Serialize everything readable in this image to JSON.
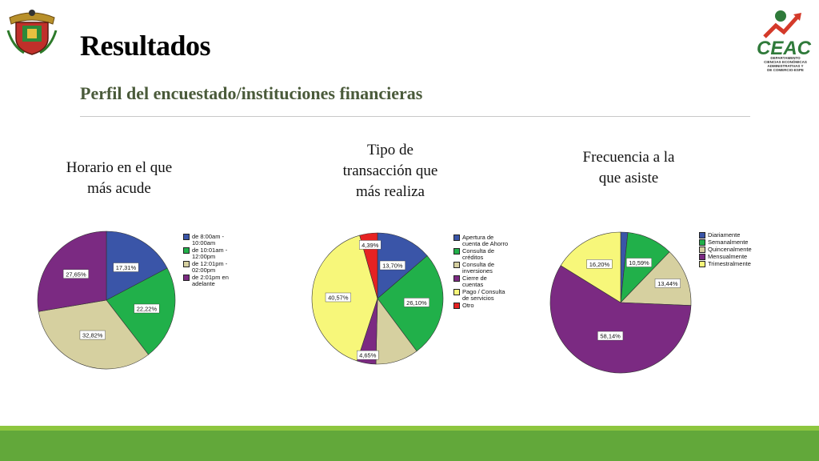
{
  "header": {
    "title": "Resultados",
    "subtitle": "Perfil del encuestado/instituciones financieras"
  },
  "logo_right": {
    "brand": "CEAC",
    "caption_lines": [
      "DEPARTAMENTO",
      "CIENCIAS ECONÓMICAS",
      "ADMINISTRATIVAS Y",
      "DE COMERCIO-ESPE"
    ]
  },
  "colors": {
    "blue": "#3a55a8",
    "green": "#21b04a",
    "khaki": "#d6d0a0",
    "purple": "#7b2a82",
    "yellow": "#f7f77a",
    "red": "#e62222",
    "lightgreen": "#2fbf5a",
    "footer_light": "#8dc63f",
    "footer_dark": "#62a83a"
  },
  "chart_data": [
    {
      "type": "pie",
      "title": "Horario en el que más acude",
      "series": [
        {
          "name": "de 8:00am - 10:00am",
          "value": 17.31,
          "label": "17,31%",
          "color": "#3a55a8"
        },
        {
          "name": "de 10:01am - 12:00pm",
          "value": 22.22,
          "label": "22,22%",
          "color": "#21b04a"
        },
        {
          "name": "de 12:01pm - 02:00pm",
          "value": 32.82,
          "label": "32,82%",
          "color": "#d6d0a0"
        },
        {
          "name": "de 2:01pm en adelante",
          "value": 27.65,
          "label": "27,65%",
          "color": "#7b2a82"
        }
      ]
    },
    {
      "type": "pie",
      "title": "Tipo de transacción que más realiza",
      "series": [
        {
          "name": "Apertura de cuenta de Ahorro",
          "value": 13.7,
          "label": "13,70%",
          "color": "#3a55a8"
        },
        {
          "name": "Consulta de créditos",
          "value": 26.1,
          "label": "26,10%",
          "color": "#21b04a"
        },
        {
          "name": "Consulta de inversiones",
          "value": 10.59,
          "label": "",
          "color": "#d6d0a0"
        },
        {
          "name": "Cierre de cuentas",
          "value": 4.65,
          "label": "4,65%",
          "color": "#7b2a82"
        },
        {
          "name": "Pago / Consulta de servicios",
          "value": 40.57,
          "label": "40,57%",
          "color": "#f7f77a"
        },
        {
          "name": "Otro",
          "value": 4.39,
          "label": "4,39%",
          "color": "#e62222"
        }
      ]
    },
    {
      "type": "pie",
      "title": "Frecuencia a la que asiste",
      "series": [
        {
          "name": "Diariamente",
          "value": 1.63,
          "label": "",
          "color": "#3a55a8"
        },
        {
          "name": "Semanalmente",
          "value": 10.59,
          "label": "10,59%",
          "color": "#21b04a"
        },
        {
          "name": "Quincenalmente",
          "value": 13.44,
          "label": "13,44%",
          "color": "#d6d0a0"
        },
        {
          "name": "Mensualmente",
          "value": 58.14,
          "label": "58,14%",
          "color": "#7b2a82"
        },
        {
          "name": "Trimestralmente",
          "value": 16.2,
          "label": "16,20%",
          "color": "#f7f77a"
        }
      ]
    }
  ]
}
